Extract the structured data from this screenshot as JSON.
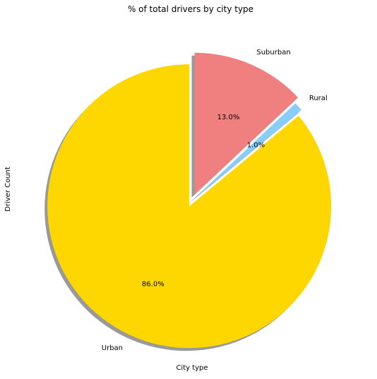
{
  "chart_data": {
    "type": "pie",
    "title": "% of total drivers by city type",
    "xlabel": "City type",
    "ylabel": "Driver Count",
    "categories": [
      "Urban",
      "Rural",
      "Suburban"
    ],
    "values": [
      86.0,
      1.0,
      13.0
    ],
    "percent_labels": [
      "86.0%",
      "1.0%",
      "13.0%"
    ],
    "colors": [
      "#FFD700",
      "#87CEFA",
      "#F08080"
    ],
    "exploded": [
      true,
      false,
      true
    ],
    "shadow": true,
    "start_angle": 90
  }
}
